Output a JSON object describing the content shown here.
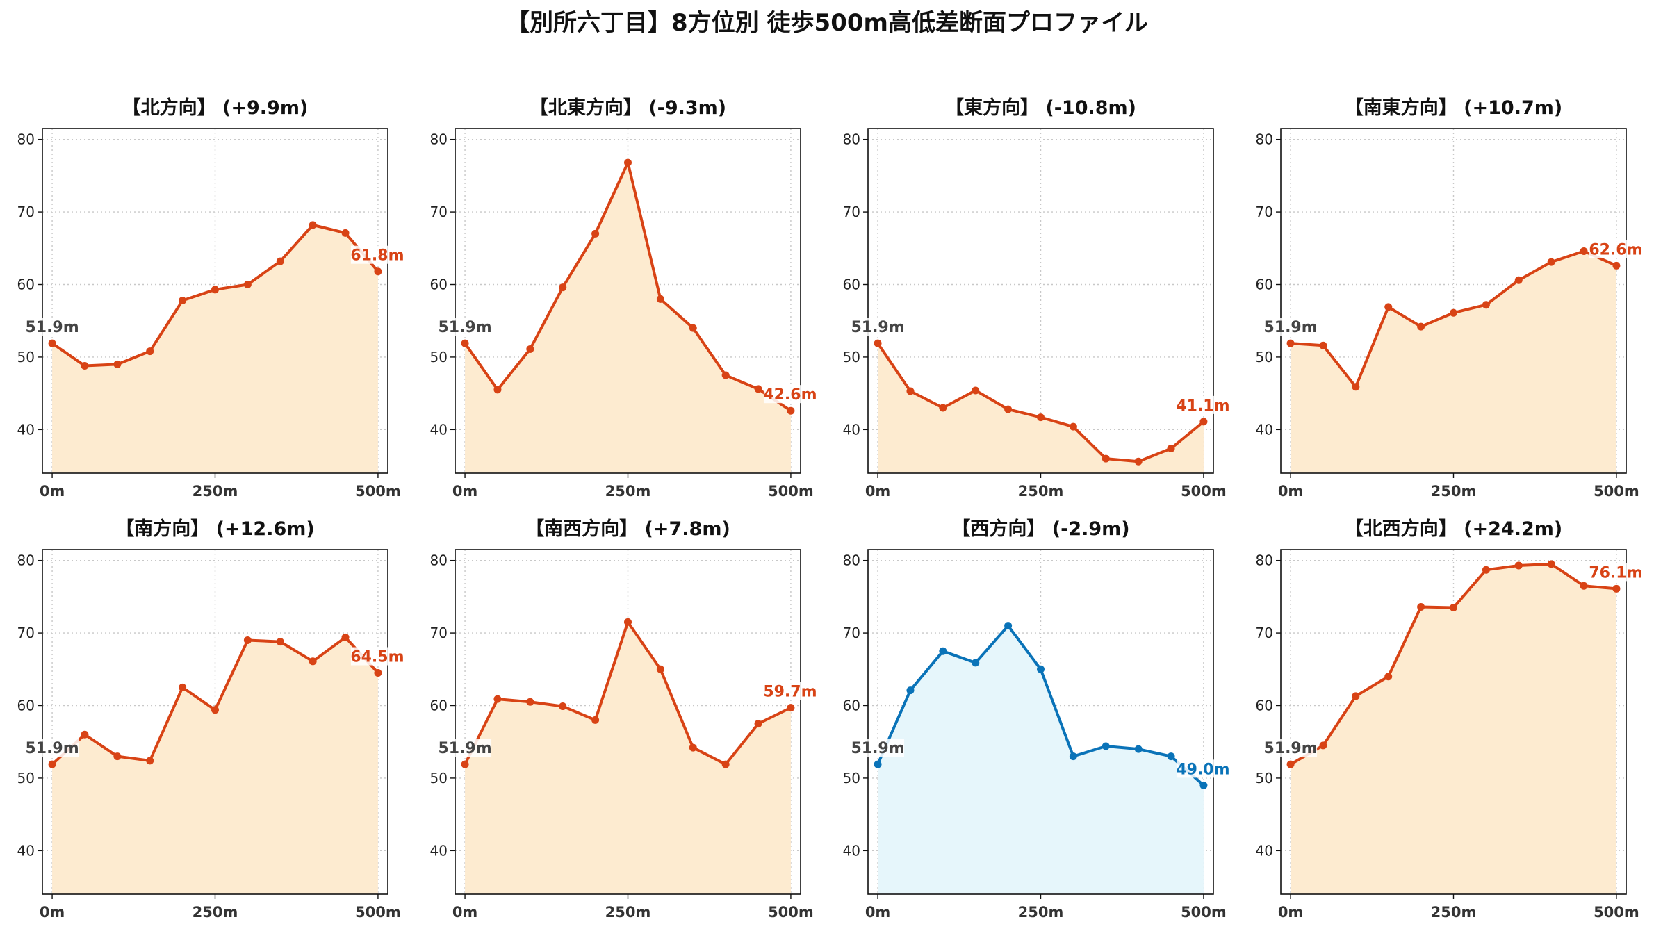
{
  "chart_data": {
    "title": "【別所六丁目】8方位別 徒歩500m高低差断面プロファイル",
    "type": "line",
    "x": [
      0,
      50,
      100,
      150,
      200,
      250,
      300,
      350,
      400,
      450,
      500
    ],
    "xticks": [
      0,
      250,
      500
    ],
    "xtick_labels": [
      "0m",
      "250m",
      "500m"
    ],
    "xlim": [
      -15,
      515
    ],
    "ylim": [
      34,
      81.5
    ],
    "yticks": [
      40,
      50,
      60,
      70,
      80
    ],
    "grid": true,
    "colors": {
      "up_line": "#d84315",
      "up_fill": "#fdebd0",
      "down_line": "#0a73b8",
      "down_fill": "#e6f6fb",
      "start_label": "#444444"
    },
    "panels": [
      {
        "title": "【北方向】 (+9.9m)",
        "variant": "up",
        "start_label": "51.9m",
        "end_label": "61.8m",
        "values": [
          51.9,
          48.8,
          49.0,
          50.8,
          57.8,
          59.3,
          60.0,
          63.2,
          68.2,
          67.1,
          61.8
        ]
      },
      {
        "title": "【北東方向】 (-9.3m)",
        "variant": "up",
        "start_label": "51.9m",
        "end_label": "42.6m",
        "values": [
          51.9,
          45.5,
          51.1,
          59.6,
          67.0,
          76.8,
          58.0,
          54.0,
          47.5,
          45.6,
          42.6
        ]
      },
      {
        "title": "【東方向】 (-10.8m)",
        "variant": "up",
        "start_label": "51.9m",
        "end_label": "41.1m",
        "values": [
          51.9,
          45.3,
          43.0,
          45.4,
          42.8,
          41.7,
          40.4,
          36.0,
          35.6,
          37.4,
          41.1
        ]
      },
      {
        "title": "【南東方向】 (+10.7m)",
        "variant": "up",
        "start_label": "51.9m",
        "end_label": "62.6m",
        "values": [
          51.9,
          51.6,
          45.9,
          56.9,
          54.2,
          56.1,
          57.2,
          60.6,
          63.1,
          64.6,
          62.6
        ]
      },
      {
        "title": "【南方向】 (+12.6m)",
        "variant": "up",
        "start_label": "51.9m",
        "end_label": "64.5m",
        "values": [
          51.9,
          56.0,
          53.0,
          52.4,
          62.5,
          59.4,
          69.0,
          68.8,
          66.1,
          69.4,
          64.5
        ]
      },
      {
        "title": "【南西方向】 (+7.8m)",
        "variant": "up",
        "start_label": "51.9m",
        "end_label": "59.7m",
        "values": [
          51.9,
          60.9,
          60.5,
          59.9,
          58.0,
          71.5,
          65.0,
          54.2,
          51.9,
          57.5,
          59.7
        ]
      },
      {
        "title": "【西方向】 (-2.9m)",
        "variant": "down",
        "start_label": "51.9m",
        "end_label": "49.0m",
        "values": [
          51.9,
          62.1,
          67.5,
          65.9,
          71.0,
          65.0,
          53.0,
          54.4,
          54.0,
          53.0,
          49.0
        ]
      },
      {
        "title": "【北西方向】 (+24.2m)",
        "variant": "up",
        "start_label": "51.9m",
        "end_label": "76.1m",
        "values": [
          51.9,
          54.5,
          61.3,
          64.0,
          73.6,
          73.5,
          78.7,
          79.3,
          79.5,
          76.5,
          76.1
        ]
      }
    ]
  }
}
